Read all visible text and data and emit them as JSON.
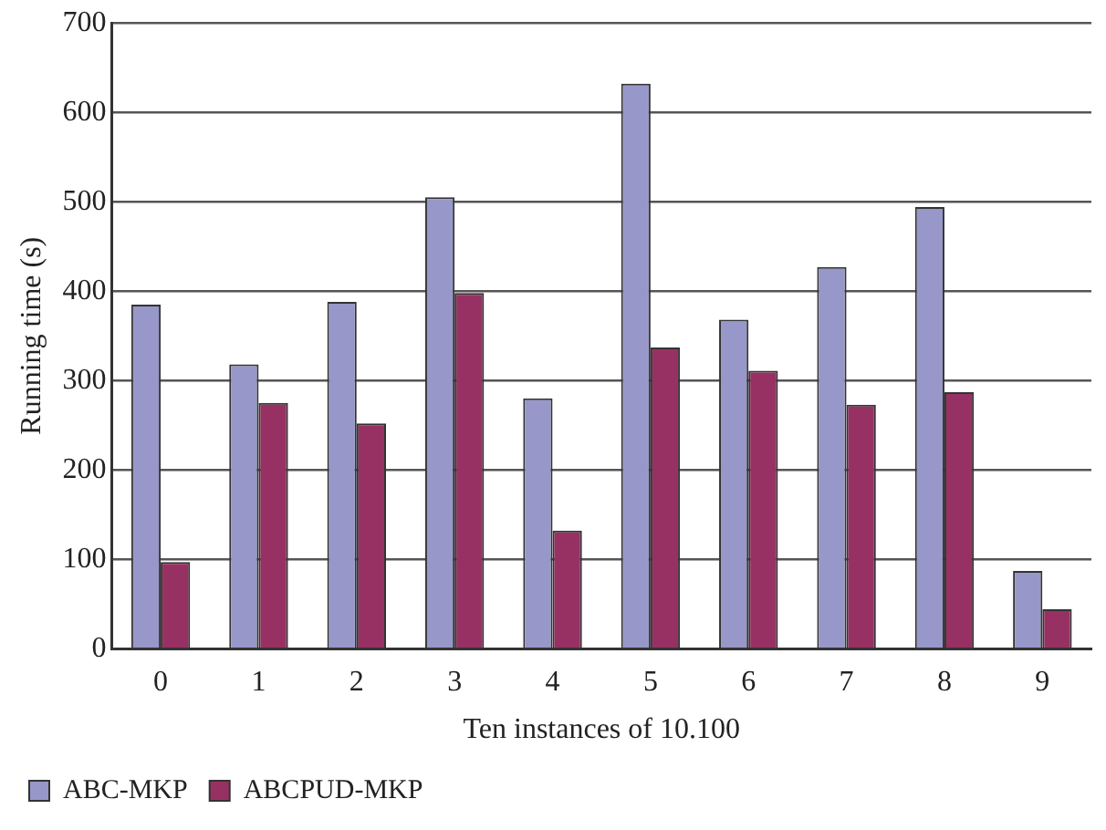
{
  "chart_data": {
    "type": "bar",
    "xlabel": "Ten instances of 10.100",
    "ylabel": "Running time (s)",
    "categories": [
      "0",
      "1",
      "2",
      "3",
      "4",
      "5",
      "6",
      "7",
      "8",
      "9"
    ],
    "series": [
      {
        "name": "ABC-MKP",
        "color": "#9797c9",
        "values": [
          385,
          318,
          388,
          505,
          280,
          632,
          368,
          427,
          494,
          87
        ]
      },
      {
        "name": "ABCPUD-MKP",
        "color": "#983163",
        "values": [
          97,
          275,
          252,
          398,
          132,
          337,
          311,
          273,
          287,
          44
        ]
      }
    ],
    "ylim": [
      0,
      700
    ],
    "yticks": [
      0,
      100,
      200,
      300,
      400,
      500,
      600,
      700
    ],
    "grid": "y",
    "legend": "bottom left"
  }
}
